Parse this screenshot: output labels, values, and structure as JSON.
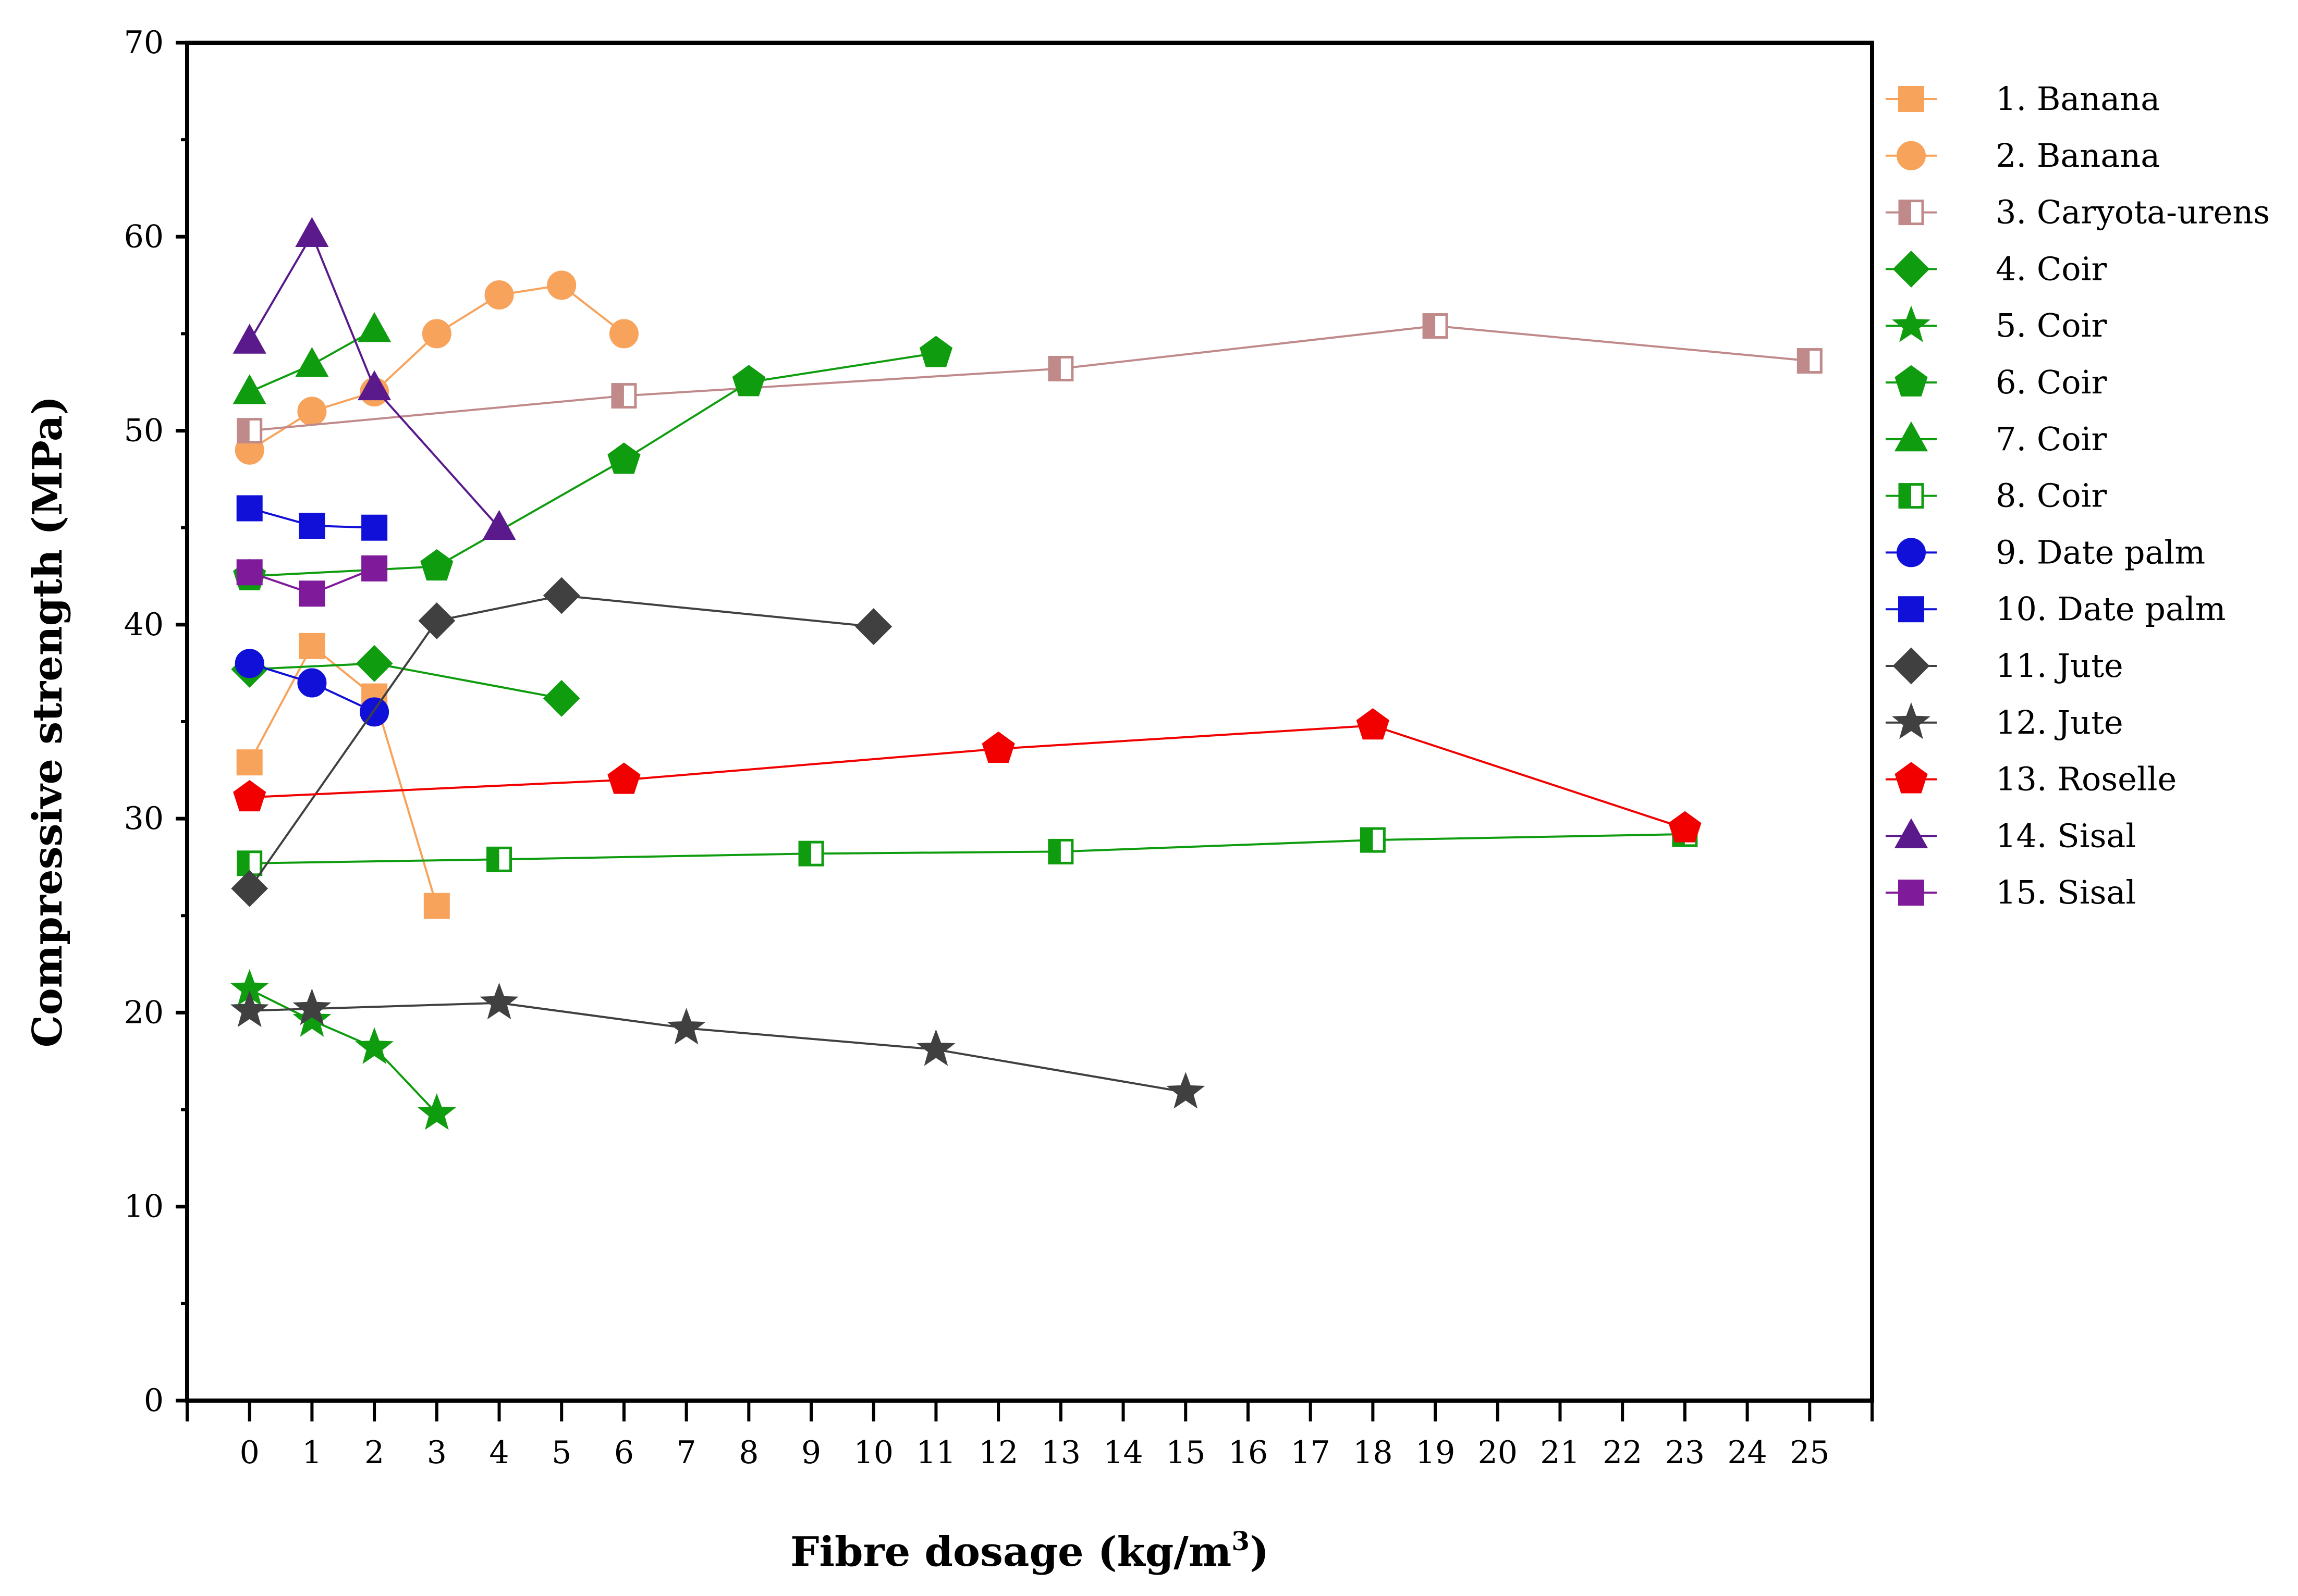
{
  "chart_data": {
    "type": "line",
    "xlabel": "Fibre dosage (kg/m",
    "xlabel_superscript": "3",
    "xlabel_suffix": ")",
    "ylabel": "Compressive strength (MPa)",
    "xlim": [
      -1,
      26
    ],
    "ylim": [
      0,
      70
    ],
    "x_ticks": [
      0,
      1,
      2,
      3,
      4,
      5,
      6,
      7,
      8,
      9,
      10,
      11,
      12,
      13,
      14,
      15,
      16,
      17,
      18,
      19,
      20,
      21,
      22,
      23,
      24,
      25
    ],
    "y_ticks": [
      0,
      10,
      20,
      30,
      40,
      50,
      60,
      70
    ],
    "grid": false,
    "legend_position": "right",
    "series": [
      {
        "name": "1. Banana",
        "color": "#F7A35C",
        "marker": "square",
        "fill": "solid",
        "x": [
          0,
          1,
          2,
          3
        ],
        "y": [
          32.9,
          38.9,
          36.3,
          25.5
        ]
      },
      {
        "name": "2. Banana",
        "color": "#F7A35C",
        "marker": "circle",
        "fill": "solid",
        "x": [
          0,
          1,
          2,
          3,
          4,
          5,
          6
        ],
        "y": [
          49.0,
          51.0,
          52.0,
          55.0,
          57.0,
          57.5,
          55.0
        ]
      },
      {
        "name": "3. Caryota-urens",
        "color": "#C08A8A",
        "marker": "square",
        "fill": "half",
        "x": [
          0,
          6,
          13,
          19,
          25
        ],
        "y": [
          50.0,
          51.8,
          53.2,
          55.4,
          53.6
        ]
      },
      {
        "name": "4. Coir",
        "color": "#0F9D0F",
        "marker": "diamond",
        "fill": "solid",
        "x": [
          0,
          2,
          5
        ],
        "y": [
          37.7,
          38.0,
          36.2
        ]
      },
      {
        "name": "5. Coir",
        "color": "#0F9D0F",
        "marker": "star",
        "fill": "solid",
        "x": [
          0,
          1,
          2,
          3
        ],
        "y": [
          21.2,
          19.6,
          18.2,
          14.8
        ]
      },
      {
        "name": "6. Coir",
        "color": "#0F9D0F",
        "marker": "pentagon",
        "fill": "solid",
        "x": [
          0,
          3,
          6,
          8,
          11
        ],
        "y": [
          42.5,
          43.0,
          48.5,
          52.5,
          54.0
        ]
      },
      {
        "name": "7. Coir",
        "color": "#0F9D0F",
        "marker": "triangle",
        "fill": "solid",
        "x": [
          0,
          1,
          2
        ],
        "y": [
          52.0,
          53.4,
          55.2
        ]
      },
      {
        "name": "8. Coir",
        "color": "#0F9D0F",
        "marker": "square",
        "fill": "half",
        "x": [
          0,
          4,
          9,
          13,
          18,
          23
        ],
        "y": [
          27.7,
          27.9,
          28.2,
          28.3,
          28.9,
          29.2
        ]
      },
      {
        "name": "9. Date palm",
        "color": "#1010D8",
        "marker": "circle",
        "fill": "solid",
        "x": [
          0,
          1,
          2
        ],
        "y": [
          38.0,
          37.0,
          35.5
        ]
      },
      {
        "name": "10. Date palm",
        "color": "#1010D8",
        "marker": "square",
        "fill": "solid",
        "x": [
          0,
          1,
          2
        ],
        "y": [
          46.0,
          45.1,
          45.0
        ]
      },
      {
        "name": "11. Jute",
        "color": "#404040",
        "marker": "diamond",
        "fill": "solid",
        "x": [
          0,
          3,
          5,
          10
        ],
        "y": [
          26.4,
          40.2,
          41.5,
          39.9
        ]
      },
      {
        "name": "12. Jute",
        "color": "#404040",
        "marker": "star",
        "fill": "solid",
        "x": [
          0,
          1,
          4,
          7,
          11,
          15
        ],
        "y": [
          20.1,
          20.2,
          20.5,
          19.2,
          18.1,
          15.9
        ]
      },
      {
        "name": "13. Roselle",
        "color": "#F20000",
        "marker": "pentagon",
        "fill": "solid",
        "x": [
          0,
          6,
          12,
          18,
          23
        ],
        "y": [
          31.1,
          32.0,
          33.6,
          34.8,
          29.5
        ]
      },
      {
        "name": "14. Sisal",
        "color": "#5A1A8C",
        "marker": "triangle",
        "fill": "solid",
        "x": [
          0,
          1,
          2,
          4
        ],
        "y": [
          54.6,
          60.1,
          52.2,
          45.0
        ]
      },
      {
        "name": "15. Sisal",
        "color": "#7F1A9A",
        "marker": "square",
        "fill": "solid",
        "x": [
          0,
          1,
          2
        ],
        "y": [
          42.7,
          41.6,
          42.9
        ]
      }
    ]
  }
}
